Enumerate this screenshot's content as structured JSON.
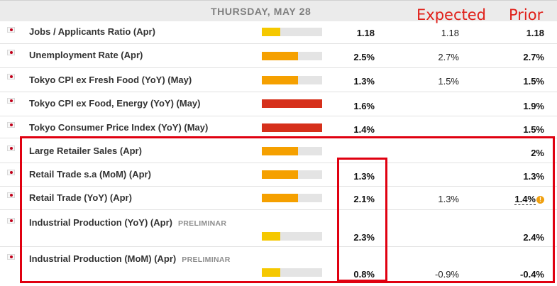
{
  "header": {
    "title": "THURSDAY, MAY 28",
    "expected_label": "Expected",
    "prior_label": "Prior"
  },
  "colors": {
    "yellow": "#f5c800",
    "orange": "#f5a000",
    "red": "#d6301b",
    "annotation_red": "#e00010"
  },
  "rows": [
    {
      "event": "Jobs / Applicants Ratio (Apr)",
      "impact": "low",
      "impact_fraction": 0.3,
      "actual": "1.18",
      "expected": "1.18",
      "prior": "1.18"
    },
    {
      "event": "Unemployment Rate (Apr)",
      "impact": "medium",
      "impact_fraction": 0.6,
      "actual": "2.5%",
      "expected": "2.7%",
      "prior": "2.7%"
    },
    {
      "event": "Tokyo CPI ex Fresh Food (YoY) (May)",
      "impact": "medium",
      "impact_fraction": 0.6,
      "actual": "1.3%",
      "expected": "1.5%",
      "prior": "1.5%"
    },
    {
      "event": "Tokyo CPI ex Food, Energy (YoY) (May)",
      "impact": "high",
      "impact_fraction": 1.0,
      "actual": "1.6%",
      "expected": "",
      "prior": "1.9%"
    },
    {
      "event": "Tokyo Consumer Price Index (YoY) (May)",
      "impact": "high",
      "impact_fraction": 1.0,
      "actual": "1.4%",
      "expected": "",
      "prior": "1.5%"
    },
    {
      "event": "Large Retailer Sales (Apr)",
      "impact": "medium",
      "impact_fraction": 0.6,
      "actual": "",
      "expected": "",
      "prior": "2%"
    },
    {
      "event": "Retail Trade s.a (MoM) (Apr)",
      "impact": "medium",
      "impact_fraction": 0.6,
      "actual": "1.3%",
      "expected": "",
      "prior": "1.3%"
    },
    {
      "event": "Retail Trade (YoY) (Apr)",
      "impact": "medium",
      "impact_fraction": 0.6,
      "actual": "2.1%",
      "expected": "1.3%",
      "prior": "1.4%",
      "prior_icon": "warning-icon",
      "prior_icon_glyph": "!"
    },
    {
      "event": "Industrial Production (YoY) (Apr)",
      "tag": "PRELIMINAR",
      "impact": "low",
      "impact_fraction": 0.3,
      "actual": "2.3%",
      "expected": "",
      "prior": "2.4%"
    },
    {
      "event": "Industrial Production (MoM) (Apr)",
      "tag": "PRELIMINAR",
      "impact": "low",
      "impact_fraction": 0.3,
      "actual": "0.8%",
      "expected": "-0.9%",
      "prior": "-0.4%"
    }
  ]
}
